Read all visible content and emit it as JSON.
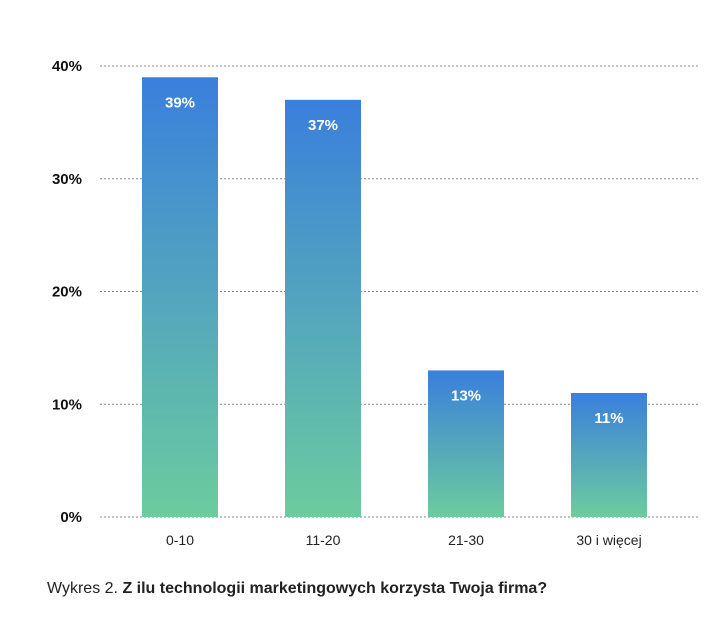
{
  "caption": {
    "prefix": "Wykres 2.",
    "title": "Z ilu technologii marketingowych korzysta Twoja firma?"
  },
  "colors": {
    "bar_top": "#3a7fdc",
    "bar_bottom": "#6ccc9e",
    "grid": "#8a8a8a"
  },
  "chart_data": {
    "type": "bar",
    "categories": [
      "0-10",
      "11-20",
      "21-30",
      "30 i więcej"
    ],
    "values": [
      39,
      37,
      13,
      11
    ],
    "data_labels": [
      "39%",
      "37%",
      "13%",
      "11%"
    ],
    "yticks": [
      0,
      10,
      20,
      30,
      40
    ],
    "ytick_labels": [
      "0%",
      "10%",
      "20%",
      "30%",
      "40%"
    ],
    "ylim": [
      0,
      40
    ],
    "grid": true,
    "xlabel": "",
    "ylabel": ""
  }
}
